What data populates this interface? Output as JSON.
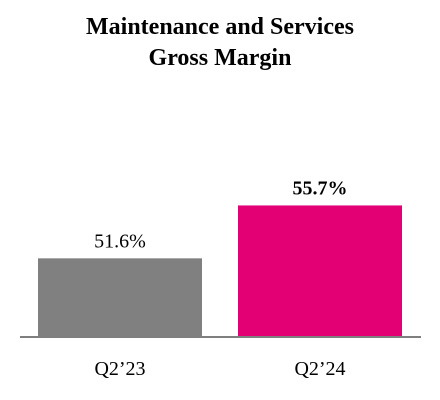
{
  "chart_data": {
    "type": "bar",
    "title_line1": "Maintenance and Services",
    "title_line2": "Gross Margin",
    "categories": [
      "Q2’23",
      "Q2’24"
    ],
    "values": [
      51.6,
      55.7
    ],
    "value_labels": [
      "51.6%",
      "55.7%"
    ],
    "colors": [
      "#808080",
      "#e20074"
    ],
    "ylim": [
      45.5,
      56.2
    ],
    "grid": false,
    "legend": "none",
    "axis_color": "#7f7f7f"
  }
}
